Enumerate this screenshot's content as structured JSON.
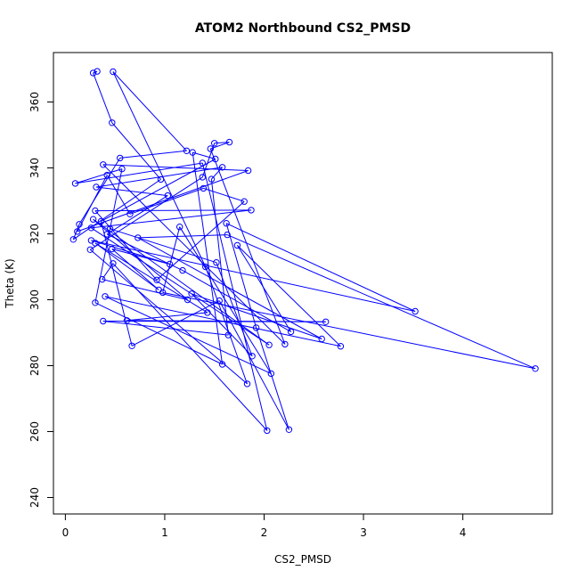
{
  "chart_data": {
    "type": "line",
    "title": "ATOM2 Northbound CS2_PMSD",
    "xlabel": "CS2_PMSD",
    "ylabel": "Theta (K)",
    "xlim": [
      -0.12,
      4.9
    ],
    "ylim": [
      235,
      375
    ],
    "xticks": [
      0,
      1,
      2,
      3,
      4
    ],
    "yticks": [
      240,
      260,
      280,
      300,
      320,
      340,
      360
    ],
    "grid": false,
    "markers": "open-circle",
    "colors": {
      "series": "#0000FF",
      "axis": "#000000",
      "background": "#FFFFFF"
    },
    "series": [
      {
        "points": [
          [
            0.32,
            369.3
          ],
          [
            0.28,
            368.8
          ],
          [
            0.47,
            353.7
          ],
          [
            0.96,
            336.5
          ],
          [
            0.08,
            318.3
          ],
          [
            0.14,
            322.9
          ],
          [
            0.55,
            343.0
          ],
          [
            1.22,
            345.2
          ],
          [
            0.48,
            369.2
          ],
          [
            1.41,
            310.0
          ],
          [
            1.83,
            274.5
          ],
          [
            0.25,
            315.2
          ],
          [
            1.38,
            337.2
          ],
          [
            1.5,
            347.5
          ],
          [
            1.65,
            347.8
          ],
          [
            1.46,
            345.8
          ],
          [
            2.21,
            286.5
          ],
          [
            0.38,
            341.0
          ],
          [
            1.84,
            339.2
          ],
          [
            0.12,
            320.7
          ],
          [
            0.42,
            337.8
          ],
          [
            0.65,
            326.0
          ],
          [
            1.39,
            333.8
          ],
          [
            1.8,
            329.8
          ],
          [
            0.92,
            306.0
          ],
          [
            0.3,
            327.0
          ],
          [
            1.87,
            327.2
          ],
          [
            0.26,
            321.8
          ],
          [
            2.05,
            286.3
          ],
          [
            0.28,
            324.4
          ],
          [
            1.23,
            300.0
          ],
          [
            0.37,
            306.2
          ],
          [
            0.48,
            311.0
          ],
          [
            2.03,
            260.3
          ],
          [
            1.38,
            341.5
          ],
          [
            0.1,
            335.3
          ],
          [
            0.57,
            339.7
          ],
          [
            0.3,
            299.1
          ],
          [
            1.58,
            280.4
          ],
          [
            1.28,
            344.7
          ],
          [
            1.51,
            342.7
          ],
          [
            0.36,
            323.8
          ],
          [
            0.67,
            286.0
          ],
          [
            1.55,
            299.7
          ],
          [
            2.25,
            260.6
          ],
          [
            1.92,
            291.5
          ],
          [
            1.62,
            323.2
          ],
          [
            3.52,
            296.5
          ],
          [
            0.26,
            318.0
          ],
          [
            1.05,
            310.8
          ],
          [
            0.47,
            315.4
          ],
          [
            0.94,
            303.0
          ],
          [
            0.3,
            317.2
          ],
          [
            1.43,
            296.1
          ],
          [
            0.62,
            293.7
          ],
          [
            2.62,
            293.3
          ],
          [
            0.38,
            293.5
          ],
          [
            1.64,
            289.3
          ],
          [
            1.47,
            336.6
          ],
          [
            1.58,
            340.2
          ],
          [
            0.31,
            334.2
          ],
          [
            1.03,
            331.6
          ],
          [
            0.42,
            319.9
          ],
          [
            1.18,
            308.9
          ],
          [
            2.27,
            290.3
          ],
          [
            1.73,
            316.5
          ],
          [
            2.77,
            285.9
          ],
          [
            0.4,
            301.0
          ],
          [
            2.07,
            277.6
          ],
          [
            1.15,
            322.1
          ],
          [
            0.98,
            302.2
          ],
          [
            4.73,
            279.1
          ],
          [
            1.63,
            319.7
          ],
          [
            0.73,
            318.8
          ],
          [
            2.58,
            288.1
          ],
          [
            1.27,
            301.8
          ],
          [
            1.88,
            282.9
          ],
          [
            1.52,
            311.3
          ],
          [
            0.45,
            321.5
          ]
        ]
      }
    ]
  }
}
